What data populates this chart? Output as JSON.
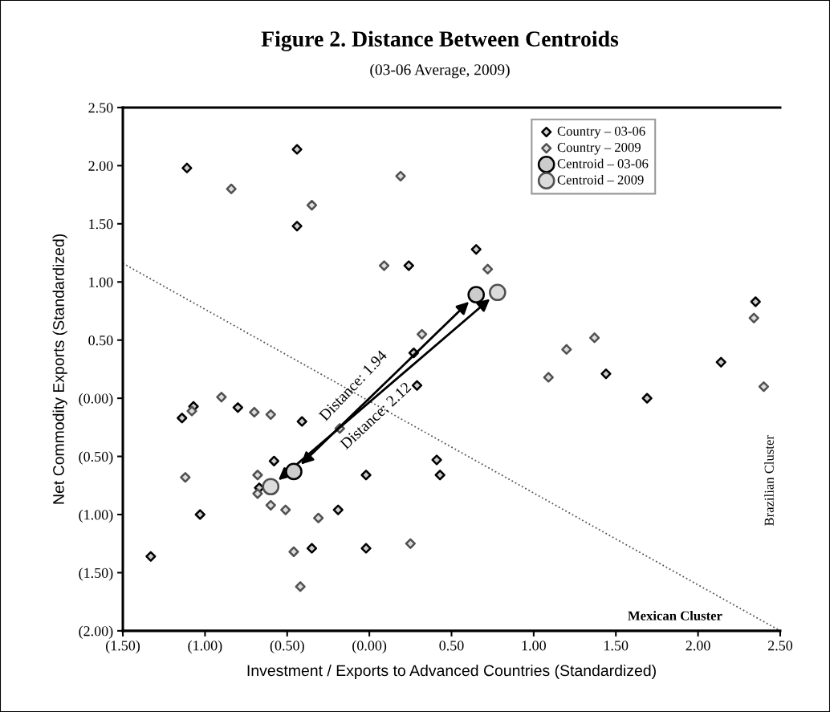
{
  "chart_data": {
    "type": "scatter",
    "title": "Figure 2. Distance Between Centroids",
    "subtitle": "(03-06 Average, 2009)",
    "xlabel": "Investment / Exports to Advanced Countries (Standardized)",
    "ylabel": "Net Commodity Exports (Standardized)",
    "xlim": [
      -1.5,
      2.5
    ],
    "ylim": [
      -2.0,
      2.5
    ],
    "xticks": [
      {
        "value": -1.5,
        "label": "(1.50)"
      },
      {
        "value": -1.0,
        "label": "(1.00)"
      },
      {
        "value": -0.5,
        "label": "(0.50)"
      },
      {
        "value": 0,
        "label": "(0.00)"
      },
      {
        "value": 0.5,
        "label": "0.50"
      },
      {
        "value": 1.0,
        "label": "1.00"
      },
      {
        "value": 1.5,
        "label": "1.50"
      },
      {
        "value": 2.0,
        "label": "2.00"
      },
      {
        "value": 2.5,
        "label": "2.50"
      }
    ],
    "yticks": [
      {
        "value": -2.0,
        "label": "(2.00)"
      },
      {
        "value": -1.5,
        "label": "(1.50)"
      },
      {
        "value": -1.0,
        "label": "(1.00)"
      },
      {
        "value": -0.5,
        "label": "(0.50)"
      },
      {
        "value": 0,
        "label": "(0.00)"
      },
      {
        "value": 0.5,
        "label": "0.50"
      },
      {
        "value": 1.0,
        "label": "1.00"
      },
      {
        "value": 1.5,
        "label": "1.50"
      },
      {
        "value": 2.0,
        "label": "2.00"
      },
      {
        "value": 2.5,
        "label": "2.50"
      }
    ],
    "grid": false,
    "legend": "top right",
    "series": [
      {
        "type": "line",
        "color": "#555555",
        "line_style": "dotted",
        "marker": "none",
        "x": [
          -1.5,
          2.5
        ],
        "values": [
          1.16,
          -2.0
        ]
      },
      {
        "name": "Country – 03-06",
        "marker": "diamond",
        "color": "#000000",
        "x": [
          -1.11,
          -0.44,
          -0.44,
          0.24,
          0.65,
          2.35,
          0.27,
          0.29,
          1.44,
          1.69,
          2.14,
          0.41,
          0.43,
          -1.14,
          -1.07,
          -0.8,
          -0.41,
          -0.58,
          -0.67,
          -0.19,
          -0.02,
          -1.03,
          -1.33,
          -0.35,
          -0.02
        ],
        "values": [
          1.98,
          2.14,
          1.48,
          1.14,
          1.28,
          0.83,
          0.39,
          0.11,
          0.21,
          0.0,
          0.31,
          -0.53,
          -0.66,
          -0.17,
          -0.07,
          -0.08,
          -0.2,
          -0.54,
          -0.77,
          -0.96,
          -0.66,
          -1.0,
          -1.36,
          -1.29,
          -1.29
        ]
      },
      {
        "name": "Country – 2009",
        "marker": "diamond",
        "color": "#505050",
        "x": [
          -0.84,
          -0.35,
          0.19,
          0.09,
          0.72,
          0.32,
          1.09,
          1.2,
          1.37,
          2.34,
          2.4,
          -1.08,
          -0.9,
          -0.7,
          -0.6,
          -0.18,
          -0.68,
          -0.68,
          -0.6,
          -0.51,
          -0.31,
          -1.12,
          -0.46,
          0.25,
          -0.42
        ],
        "values": [
          1.8,
          1.66,
          1.91,
          1.14,
          1.11,
          0.55,
          0.18,
          0.42,
          0.52,
          0.69,
          0.1,
          -0.11,
          0.01,
          -0.12,
          -0.14,
          -0.26,
          -0.66,
          -0.82,
          -0.92,
          -0.96,
          -1.03,
          -0.68,
          -1.32,
          -1.25,
          -1.62
        ]
      },
      {
        "name": "Centroid – 03-06",
        "marker": "circle",
        "color": "#000000",
        "x": [
          -0.46,
          0.65
        ],
        "values": [
          -0.63,
          0.89
        ]
      },
      {
        "name": "Centroid – 2009",
        "marker": "circle",
        "color": "#505050",
        "x": [
          -0.6,
          0.78
        ],
        "values": [
          -0.76,
          0.91
        ]
      }
    ],
    "annotations": [
      "Distance: 1.94",
      "Distance: 2.12",
      "Mexican Cluster",
      "Brazilian Cluster"
    ]
  }
}
